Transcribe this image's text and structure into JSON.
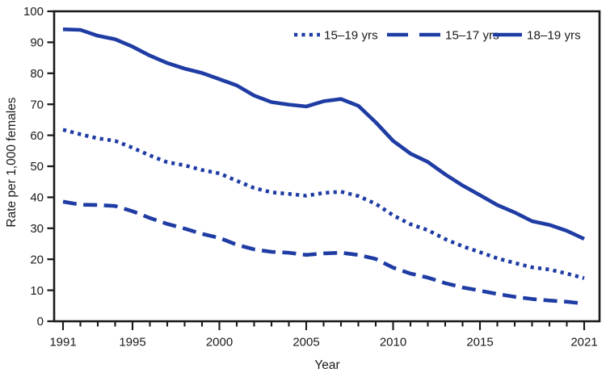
{
  "figure": {
    "background": "#ffffff",
    "axis_color": "#1a1a1a",
    "line_color": "#1e3ca3"
  },
  "chart_data": {
    "type": "line",
    "title": "",
    "xlabel": "Year",
    "ylabel": "Rate per 1,000 females",
    "xlim": [
      1991,
      2021
    ],
    "ylim": [
      0,
      100
    ],
    "grid": false,
    "legend_position": "top-right-inside",
    "y_ticks": [
      0,
      10,
      20,
      30,
      40,
      50,
      60,
      70,
      80,
      90,
      100
    ],
    "x_major_ticks": [
      1991,
      1995,
      2000,
      2005,
      2010,
      2015,
      2021
    ],
    "x_minor_tick_step": 1,
    "x": [
      1991,
      1992,
      1993,
      1994,
      1995,
      1996,
      1997,
      1998,
      1999,
      2000,
      2001,
      2002,
      2003,
      2004,
      2005,
      2006,
      2007,
      2008,
      2009,
      2010,
      2011,
      2012,
      2013,
      2014,
      2015,
      2016,
      2017,
      2018,
      2019,
      2020,
      2021
    ],
    "series": [
      {
        "name": "15–19 yrs",
        "line_style": "dotted",
        "color": "#1e3ca3",
        "values": [
          61.8,
          60.3,
          59.0,
          58.2,
          56.0,
          53.5,
          51.3,
          50.3,
          48.8,
          47.7,
          45.3,
          43.0,
          41.6,
          41.1,
          40.5,
          41.4,
          41.8,
          40.4,
          37.9,
          34.2,
          31.3,
          29.4,
          26.5,
          24.2,
          22.3,
          20.3,
          18.8,
          17.4,
          16.7,
          15.4,
          13.9
        ]
      },
      {
        "name": "15–17 yrs",
        "line_style": "dashed",
        "color": "#1e3ca3",
        "values": [
          38.6,
          37.6,
          37.5,
          37.2,
          35.5,
          33.3,
          31.4,
          29.9,
          28.2,
          26.9,
          24.7,
          23.2,
          22.4,
          22.1,
          21.4,
          21.9,
          22.1,
          21.4,
          20.1,
          17.3,
          15.4,
          14.1,
          12.3,
          10.9,
          9.9,
          8.8,
          7.9,
          7.2,
          6.7,
          6.3,
          5.7
        ]
      },
      {
        "name": "18–19 yrs",
        "line_style": "solid",
        "color": "#1e3ca3",
        "values": [
          94.2,
          94.0,
          92.1,
          91.0,
          88.6,
          85.7,
          83.3,
          81.5,
          80.1,
          78.1,
          76.1,
          72.8,
          70.7,
          69.9,
          69.3,
          71.0,
          71.7,
          69.5,
          64.2,
          58.2,
          54.1,
          51.4,
          47.4,
          43.8,
          40.7,
          37.5,
          35.1,
          32.3,
          31.1,
          29.2,
          26.6
        ]
      }
    ]
  }
}
